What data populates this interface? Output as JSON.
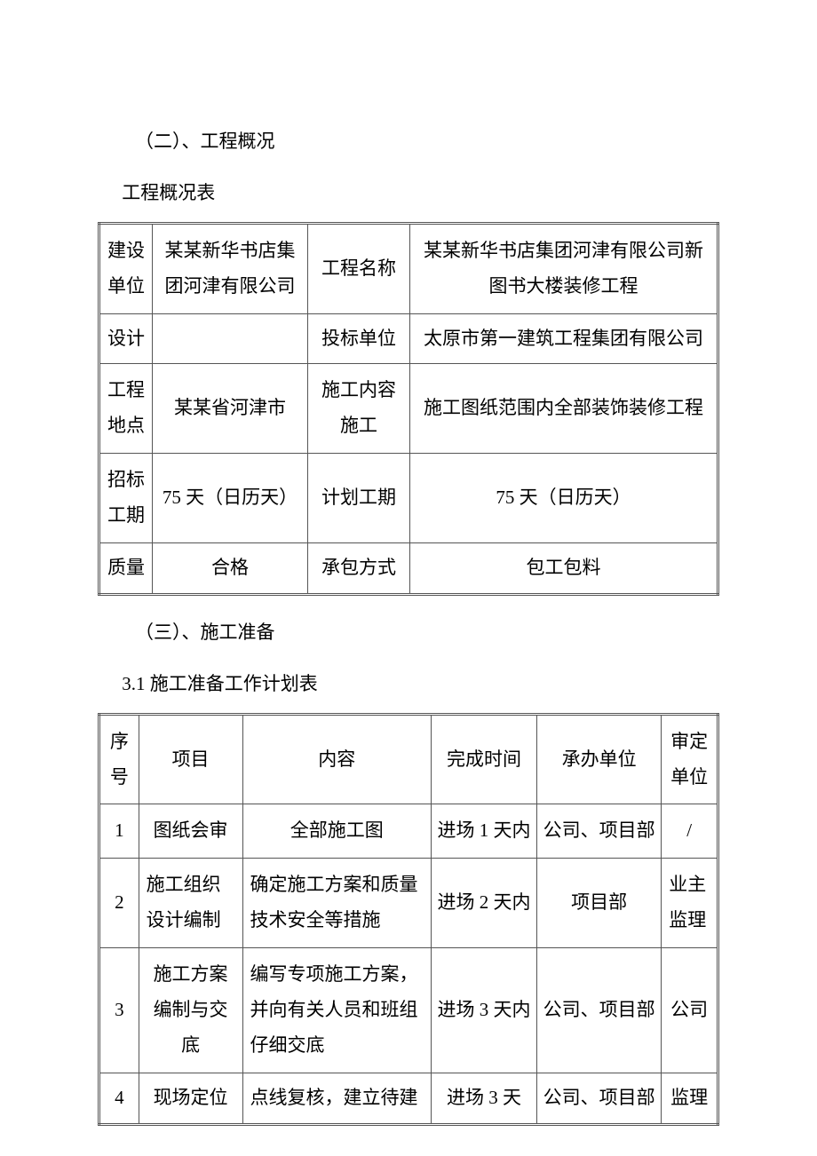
{
  "section2": {
    "heading": "（二）、工程概况",
    "tableCaption": "工程概况表"
  },
  "overview": {
    "rows": [
      {
        "label1": "建设单位",
        "value1": "某某新华书店集团河津有限公司",
        "label2": "工程名称",
        "value2": "某某新华书店集团河津有限公司新图书大楼装修工程"
      },
      {
        "label1": "设计",
        "value1": "",
        "label2": "投标单位",
        "value2": "太原市第一建筑工程集团有限公司"
      },
      {
        "label1": "工程地点",
        "value1": "某某省河津市",
        "label2": "施工内容施工",
        "value2": "施工图纸范围内全部装饰装修工程"
      },
      {
        "label1": "招标工期",
        "value1": "75 天（日历天）",
        "label2": "计划工期",
        "value2": "75 天（日历天）"
      },
      {
        "label1": "质量",
        "value1": "合格",
        "label2": "承包方式",
        "value2": "包工包料"
      }
    ]
  },
  "section3": {
    "heading": "（三）、施工准备",
    "tableCaption": "3.1 施工准备工作计划表"
  },
  "plan": {
    "headers": {
      "no": "序号",
      "project": "项目",
      "content": "内容",
      "time": "完成时间",
      "org": "承办单位",
      "approve": "审定单位"
    },
    "rows": [
      {
        "no": "1",
        "project": "图纸会审",
        "content": "全部施工图",
        "time": "进场 1 天内",
        "org": "公司、项目部",
        "approve": "/"
      },
      {
        "no": "2",
        "project": "施工组织设计编制",
        "content": "确定施工方案和质量技术安全等措施",
        "time": "进场 2 天内",
        "org": "项目部",
        "approve": "业主监理"
      },
      {
        "no": "3",
        "project": "施工方案编制与交底",
        "content": "编写专项施工方案，并向有关人员和班组仔细交底",
        "time": "进场 3 天内",
        "org": "公司、项目部",
        "approve": "公司"
      },
      {
        "no": "4",
        "project": "现场定位",
        "content": "点线复核，建立待建",
        "time": "进场 3 天",
        "org": "公司、项目部",
        "approve": "监理"
      }
    ]
  },
  "colors": {
    "text": "#000000",
    "background": "#ffffff",
    "border": "#555555"
  }
}
